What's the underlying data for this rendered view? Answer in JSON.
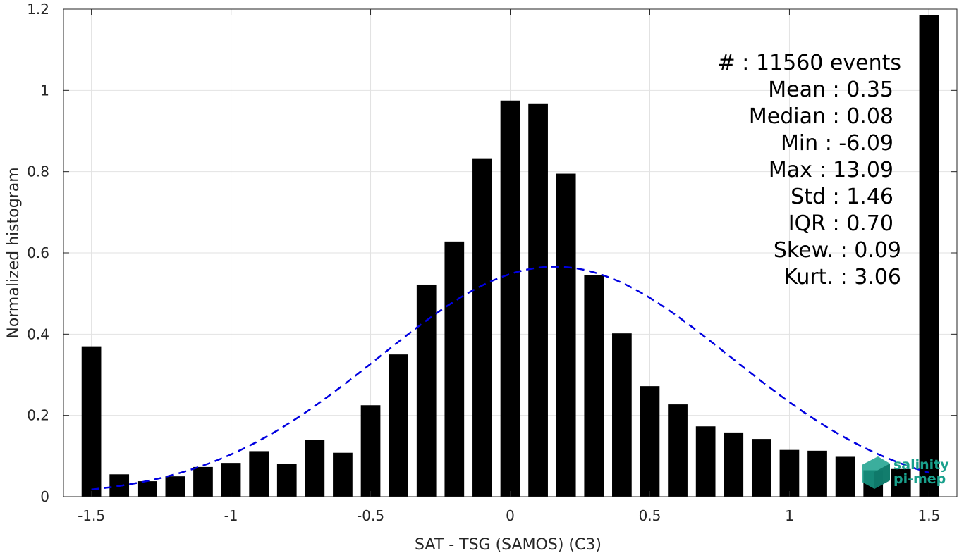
{
  "chart_data": {
    "type": "bar",
    "xlabel": "SAT - TSG (SAMOS) (C3)",
    "ylabel": "Normalized histogram",
    "xlim": [
      -1.6,
      1.6
    ],
    "ylim": [
      0,
      1.2
    ],
    "xticks": [
      -1.5,
      -1,
      -0.5,
      0,
      0.5,
      1,
      1.5
    ],
    "xtick_labels": [
      "-1.5",
      "-1",
      "-0.5",
      "0",
      "0.5",
      "1",
      "1.5"
    ],
    "yticks": [
      0,
      0.2,
      0.4,
      0.6,
      0.8,
      1,
      1.2
    ],
    "ytick_labels": [
      "0",
      "0.2",
      "0.4",
      "0.6",
      "0.8",
      "1",
      "1.2"
    ],
    "grid": true,
    "bar_color": "#000000",
    "x": [
      -1.5,
      -1.4,
      -1.3,
      -1.2,
      -1.1,
      -1.0,
      -0.9,
      -0.8,
      -0.7,
      -0.6,
      -0.5,
      -0.4,
      -0.3,
      -0.2,
      -0.1,
      0.0,
      0.1,
      0.2,
      0.3,
      0.4,
      0.5,
      0.6,
      0.7,
      0.8,
      0.9,
      1.0,
      1.1,
      1.2,
      1.3,
      1.4,
      1.5
    ],
    "values": [
      0.37,
      0.055,
      0.038,
      0.05,
      0.073,
      0.083,
      0.112,
      0.08,
      0.14,
      0.108,
      0.225,
      0.35,
      0.522,
      0.628,
      0.833,
      0.975,
      0.968,
      0.795,
      0.545,
      0.402,
      0.272,
      0.227,
      0.173,
      0.158,
      0.142,
      0.115,
      0.113,
      0.098,
      0.065,
      0.068,
      1.185
    ],
    "fit_curve": {
      "style": "dashed",
      "color": "#0000e0",
      "mean": 0.16,
      "peak": 0.566,
      "sigma": 0.63,
      "x_range": [
        -1.5,
        1.5
      ]
    },
    "stats": [
      "#  : 11560 events",
      "Mean : 0.35",
      "Median : 0.08",
      "Min : -6.09",
      "Max : 13.09",
      "Std : 1.46",
      "IQR : 0.70",
      "Skew. : 0.09",
      "Kurt. : 3.06"
    ]
  },
  "logo": {
    "line1": "salinity",
    "line2": "pi-mep",
    "color": "#19a08c"
  }
}
